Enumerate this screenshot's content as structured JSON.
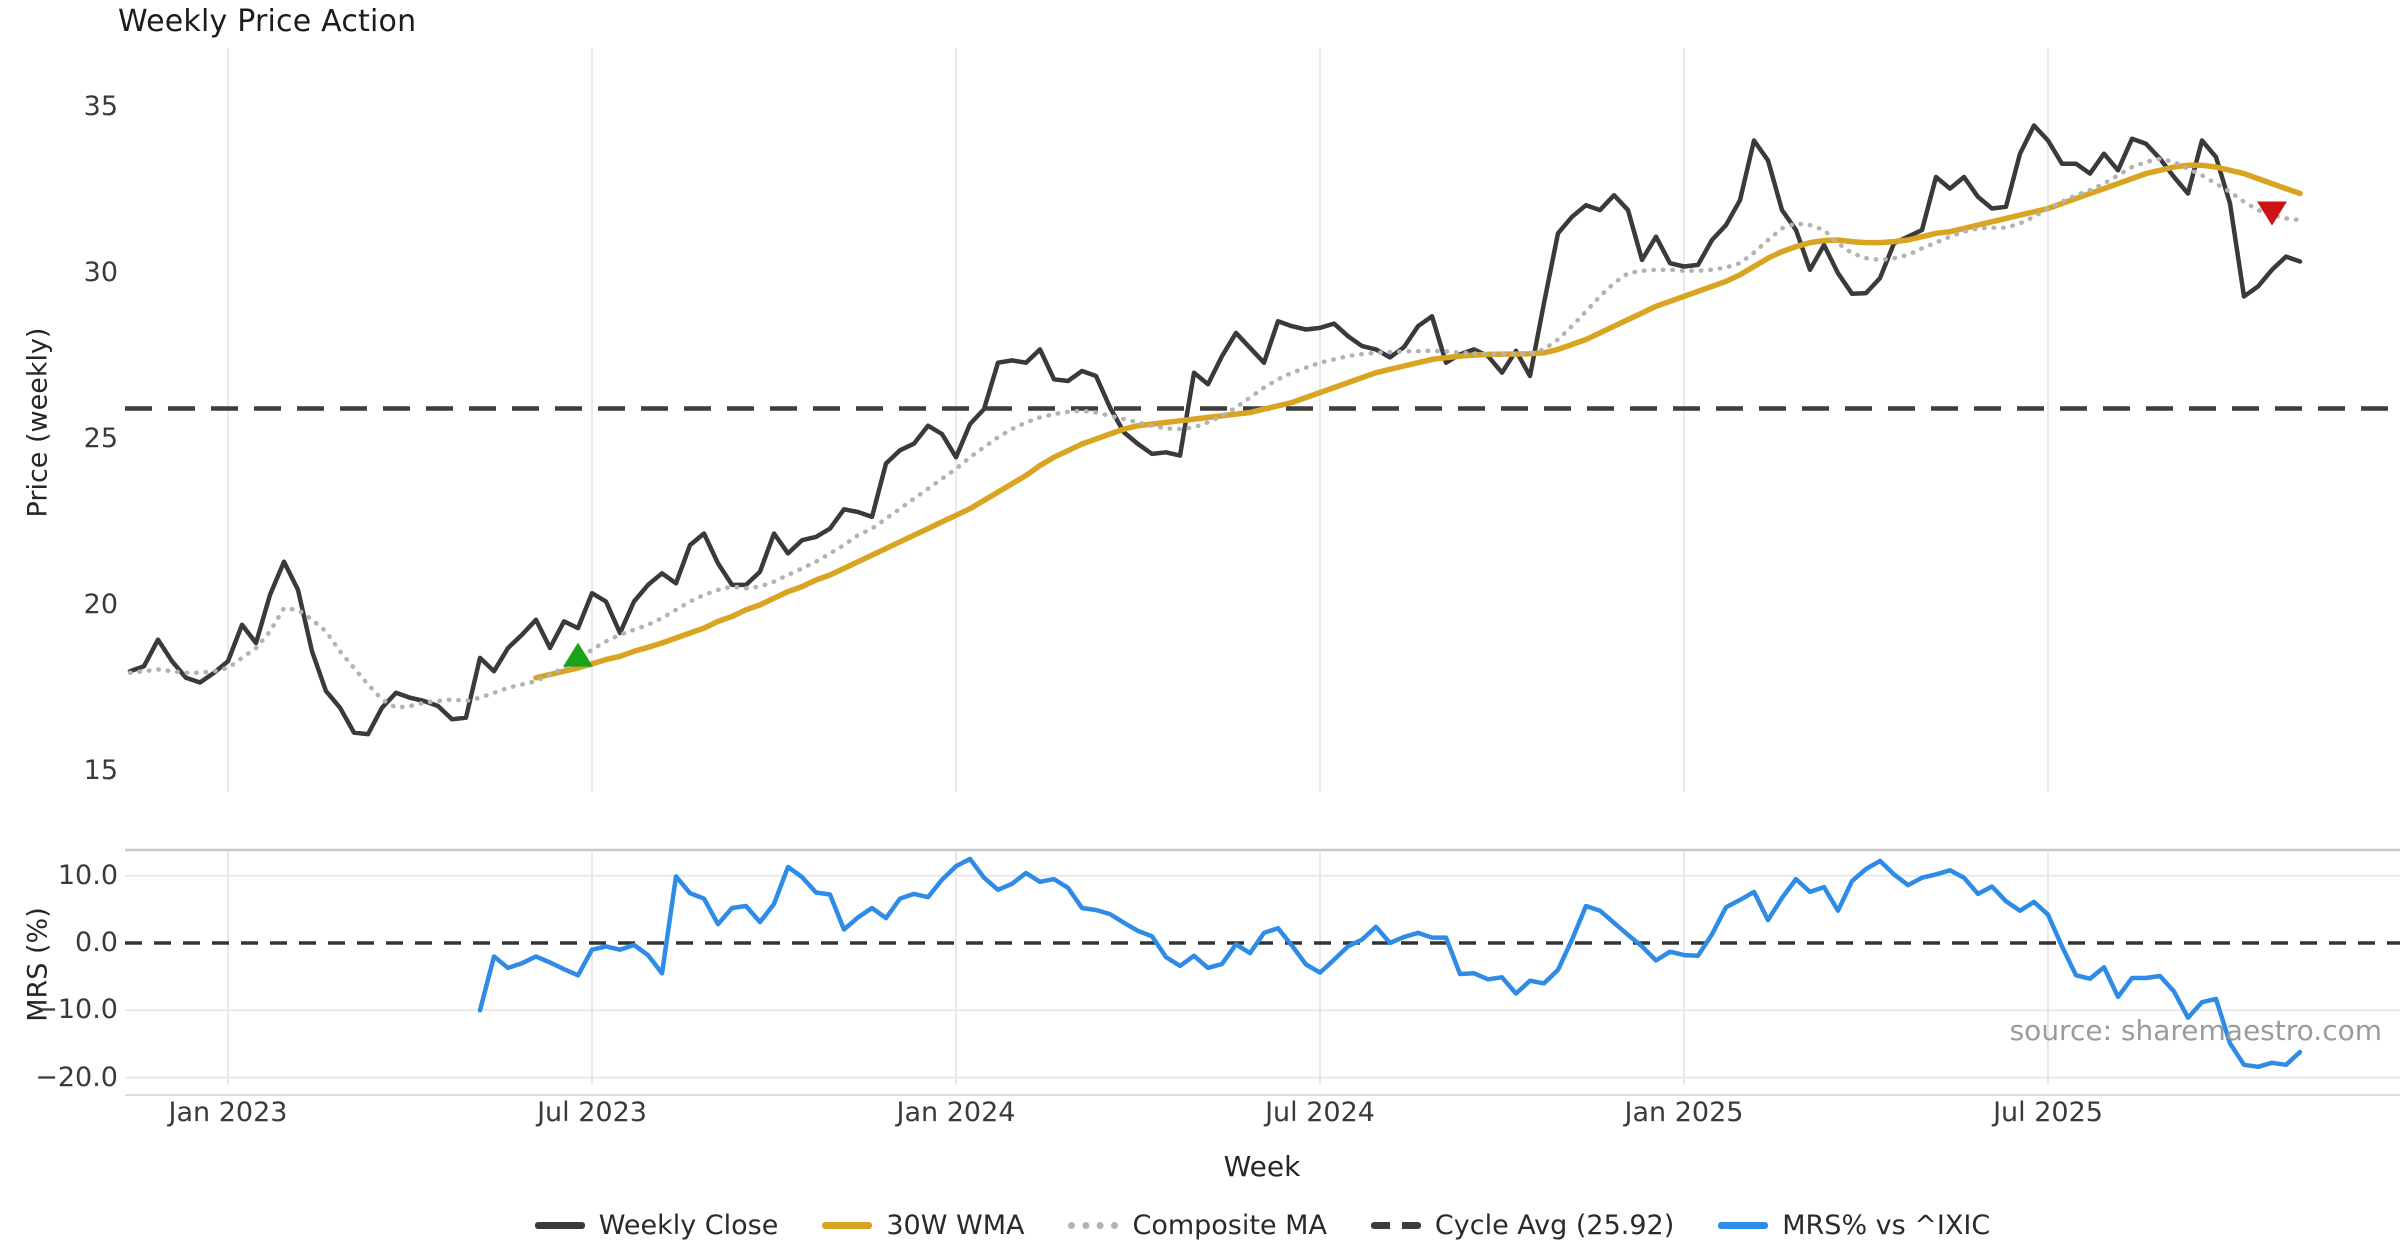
{
  "title": "Weekly Price Action",
  "source_text": "source: sharemaestro.com",
  "colors": {
    "close": "#3a3a3a",
    "wma": "#d9a421",
    "composite": "#b3b3b3",
    "cycle": "#3d3d3d",
    "mrs": "#2e8be6",
    "buy_marker": "#1aa21a",
    "sell_marker": "#cd1414",
    "grid": "#e9e9e9",
    "panel_border": "#c8c8c8",
    "zero_line": "#333333"
  },
  "legend": [
    {
      "label": "Weekly Close",
      "style": "solid",
      "color": "#3a3a3a"
    },
    {
      "label": "30W WMA",
      "style": "solid",
      "color": "#d9a421"
    },
    {
      "label": "Composite MA",
      "style": "dotted",
      "color": "#b3b3b3"
    },
    {
      "label": "Cycle Avg (25.92)",
      "style": "dashed",
      "color": "#3d3d3d"
    },
    {
      "label": "MRS% vs ^IXIC",
      "style": "solid",
      "color": "#2e8be6"
    }
  ],
  "chart_data": {
    "type": "line",
    "title": "Weekly Price Action",
    "xlabel": "Week",
    "x_unit": "week_index",
    "xticks": [
      {
        "week": 7,
        "label": "Jan 2023"
      },
      {
        "week": 33,
        "label": "Jul 2023"
      },
      {
        "week": 59,
        "label": "Jan 2024"
      },
      {
        "week": 85,
        "label": "Jul 2024"
      },
      {
        "week": 111,
        "label": "Jan 2025"
      },
      {
        "week": 137,
        "label": "Jul 2025"
      }
    ],
    "weeks_plotted": 156,
    "panels": [
      {
        "name": "price",
        "ylabel": "Price (weekly)",
        "yticks": [
          35,
          30,
          25,
          20,
          15
        ],
        "ylim": [
          13.2,
          36.8
        ],
        "cycle_avg": 25.92,
        "series": [
          {
            "name": "Weekly Close",
            "style": "solid",
            "color_key": "close",
            "start": 0,
            "values": [
              18.0,
              18.15,
              18.95,
              18.3,
              17.8,
              17.66,
              17.95,
              18.3,
              19.4,
              18.85,
              20.3,
              21.3,
              20.45,
              18.6,
              17.4,
              16.9,
              16.15,
              16.1,
              16.9,
              17.35,
              17.2,
              17.1,
              16.95,
              16.55,
              16.6,
              18.4,
              18.0,
              18.7,
              19.1,
              19.55,
              18.7,
              19.5,
              19.3,
              20.35,
              20.1,
              19.15,
              20.1,
              20.6,
              20.95,
              20.65,
              21.8,
              22.15,
              21.25,
              20.6,
              20.6,
              21.0,
              22.15,
              21.55,
              21.95,
              22.05,
              22.3,
              22.88,
              22.8,
              22.65,
              24.26,
              24.66,
              24.86,
              25.4,
              25.15,
              24.45,
              25.45,
              25.9,
              27.3,
              27.37,
              27.3,
              27.7,
              26.8,
              26.75,
              27.05,
              26.9,
              25.95,
              25.2,
              24.85,
              24.55,
              24.6,
              24.5,
              27.0,
              26.65,
              27.5,
              28.2,
              27.75,
              27.3,
              28.55,
              28.4,
              28.3,
              28.35,
              28.48,
              28.1,
              27.8,
              27.7,
              27.46,
              27.77,
              28.4,
              28.7,
              27.3,
              27.55,
              27.7,
              27.5,
              27.0,
              27.66,
              26.9,
              29.1,
              31.2,
              31.7,
              32.05,
              31.9,
              32.35,
              31.9,
              30.4,
              31.1,
              30.3,
              30.2,
              30.25,
              31.0,
              31.45,
              32.2,
              34.0,
              33.4,
              31.9,
              31.3,
              30.1,
              30.85,
              30.0,
              29.38,
              29.4,
              29.85,
              30.9,
              31.1,
              31.3,
              32.9,
              32.55,
              32.9,
              32.3,
              31.95,
              32.0,
              33.6,
              34.45,
              34.0,
              33.3,
              33.3,
              33.0,
              33.6,
              33.1,
              34.05,
              33.9,
              33.45,
              32.9,
              32.4,
              34.0,
              33.5,
              32.1,
              29.3,
              29.6,
              30.1,
              30.5,
              30.35
            ]
          },
          {
            "name": "30W WMA",
            "style": "solid",
            "color_key": "wma",
            "start": 29,
            "values": [
              17.8,
              17.9,
              18.0,
              18.1,
              18.22,
              18.35,
              18.45,
              18.6,
              18.72,
              18.85,
              19.0,
              19.15,
              19.3,
              19.5,
              19.65,
              19.85,
              20.0,
              20.2,
              20.4,
              20.55,
              20.75,
              20.9,
              21.1,
              21.3,
              21.5,
              21.7,
              21.9,
              22.1,
              22.3,
              22.5,
              22.7,
              22.9,
              23.15,
              23.4,
              23.65,
              23.9,
              24.2,
              24.45,
              24.65,
              24.85,
              25.0,
              25.15,
              25.3,
              25.4,
              25.45,
              25.5,
              25.55,
              25.6,
              25.65,
              25.7,
              25.75,
              25.8,
              25.9,
              26.0,
              26.1,
              26.25,
              26.4,
              26.55,
              26.7,
              26.85,
              27.0,
              27.1,
              27.2,
              27.3,
              27.4,
              27.45,
              27.5,
              27.53,
              27.55,
              27.56,
              27.56,
              27.57,
              27.6,
              27.7,
              27.85,
              28.0,
              28.2,
              28.4,
              28.6,
              28.8,
              29.0,
              29.15,
              29.3,
              29.45,
              29.6,
              29.75,
              29.95,
              30.2,
              30.45,
              30.65,
              30.8,
              30.92,
              30.98,
              31.0,
              30.95,
              30.92,
              30.92,
              30.95,
              31.0,
              31.1,
              31.2,
              31.25,
              31.35,
              31.45,
              31.55,
              31.65,
              31.75,
              31.85,
              31.95,
              32.1,
              32.25,
              32.4,
              32.55,
              32.7,
              32.85,
              33.0,
              33.1,
              33.2,
              33.25,
              33.25,
              33.2,
              33.1,
              33.0,
              32.85,
              32.7,
              32.55,
              32.4
            ]
          },
          {
            "name": "Composite MA",
            "style": "dotted",
            "color_key": "composite",
            "start": 0,
            "values": [
              17.95,
              18.0,
              18.05,
              18.0,
              17.95,
              17.95,
              18.0,
              18.1,
              18.4,
              18.7,
              19.2,
              19.9,
              19.85,
              19.55,
              19.2,
              18.6,
              18.1,
              17.6,
              17.15,
              16.9,
              16.95,
              17.05,
              17.1,
              17.15,
              17.1,
              17.2,
              17.35,
              17.5,
              17.6,
              17.7,
              17.9,
              18.1,
              18.35,
              18.65,
              18.9,
              19.1,
              19.25,
              19.4,
              19.6,
              19.85,
              20.1,
              20.3,
              20.45,
              20.55,
              20.5,
              20.55,
              20.7,
              20.9,
              21.1,
              21.3,
              21.55,
              21.8,
              22.1,
              22.3,
              22.6,
              22.9,
              23.2,
              23.5,
              23.8,
              24.1,
              24.45,
              24.75,
              25.05,
              25.3,
              25.5,
              25.65,
              25.75,
              25.82,
              25.85,
              25.8,
              25.7,
              25.6,
              25.5,
              25.4,
              25.32,
              25.3,
              25.35,
              25.5,
              25.7,
              25.95,
              26.25,
              26.55,
              26.8,
              27.0,
              27.15,
              27.3,
              27.4,
              27.5,
              27.56,
              27.6,
              27.62,
              27.64,
              27.65,
              27.66,
              27.64,
              27.6,
              27.58,
              27.56,
              27.56,
              27.56,
              27.58,
              27.7,
              28.0,
              28.4,
              28.85,
              29.3,
              29.7,
              30.0,
              30.07,
              30.1,
              30.1,
              30.07,
              30.07,
              30.1,
              30.17,
              30.3,
              30.62,
              31.0,
              31.35,
              31.5,
              31.45,
              31.3,
              30.9,
              30.6,
              30.45,
              30.4,
              30.45,
              30.55,
              30.75,
              30.92,
              31.1,
              31.25,
              31.35,
              31.37,
              31.37,
              31.5,
              31.7,
              31.95,
              32.15,
              32.35,
              32.5,
              32.7,
              32.95,
              33.2,
              33.35,
              33.45,
              33.35,
              33.15,
              32.95,
              32.7,
              32.45,
              32.15,
              31.9,
              31.75,
              31.65,
              31.6
            ]
          }
        ],
        "markers": [
          {
            "type": "buy",
            "shape": "triangle-up",
            "color_key": "buy_marker",
            "week": 32,
            "value": 18.5
          },
          {
            "type": "sell",
            "shape": "triangle-down",
            "color_key": "sell_marker",
            "week": 153,
            "value": 31.8
          }
        ]
      },
      {
        "name": "mrs",
        "ylabel": "MRS (%)",
        "yticks": [
          10.0,
          0.0,
          -10.0,
          -20.0
        ],
        "ytick_labels": [
          "10.0",
          "0.0",
          "−10.0",
          "−20.0"
        ],
        "ylim": [
          -22.5,
          13.8
        ],
        "zero_line": 0.0,
        "series": [
          {
            "name": "MRS% vs ^IXIC",
            "style": "solid",
            "color_key": "mrs",
            "start": 25,
            "values": [
              -10.0,
              -2.0,
              -3.7,
              -3.0,
              -2.0,
              -2.9,
              -3.9,
              -4.8,
              -1.0,
              -0.5,
              -1.0,
              -0.3,
              -1.8,
              -4.5,
              9.9,
              7.4,
              6.6,
              2.8,
              5.2,
              5.5,
              3.1,
              5.8,
              11.3,
              9.8,
              7.5,
              7.2,
              2.0,
              3.8,
              5.2,
              3.7,
              6.6,
              7.3,
              6.8,
              9.4,
              11.4,
              12.5,
              9.7,
              7.9,
              8.8,
              10.4,
              9.1,
              9.5,
              8.2,
              5.2,
              4.9,
              4.3,
              3.0,
              1.8,
              1.0,
              -2.1,
              -3.4,
              -1.9,
              -3.7,
              -3.1,
              -0.2,
              -1.5,
              1.5,
              2.2,
              -0.4,
              -3.2,
              -4.4,
              -2.5,
              -0.5,
              0.5,
              2.4,
              0.0,
              0.9,
              1.5,
              0.8,
              0.8,
              -4.6,
              -4.5,
              -5.4,
              -5.1,
              -7.5,
              -5.6,
              -6.0,
              -4.0,
              0.5,
              5.5,
              4.8,
              3.0,
              1.2,
              -0.5,
              -2.6,
              -1.3,
              -1.8,
              -1.9,
              1.3,
              5.3,
              6.4,
              7.6,
              3.4,
              6.7,
              9.5,
              7.6,
              8.3,
              4.8,
              9.2,
              11.0,
              12.2,
              10.2,
              8.6,
              9.7,
              10.2,
              10.8,
              9.7,
              7.3,
              8.4,
              6.2,
              4.8,
              6.1,
              4.2,
              -0.5,
              -4.8,
              -5.3,
              -3.6,
              -8.0,
              -5.2,
              -5.2,
              -4.9,
              -7.2,
              -11.1,
              -8.8,
              -8.3,
              -14.9,
              -18.1,
              -18.4,
              -17.8,
              -18.1,
              -16.2
            ]
          }
        ]
      }
    ]
  }
}
